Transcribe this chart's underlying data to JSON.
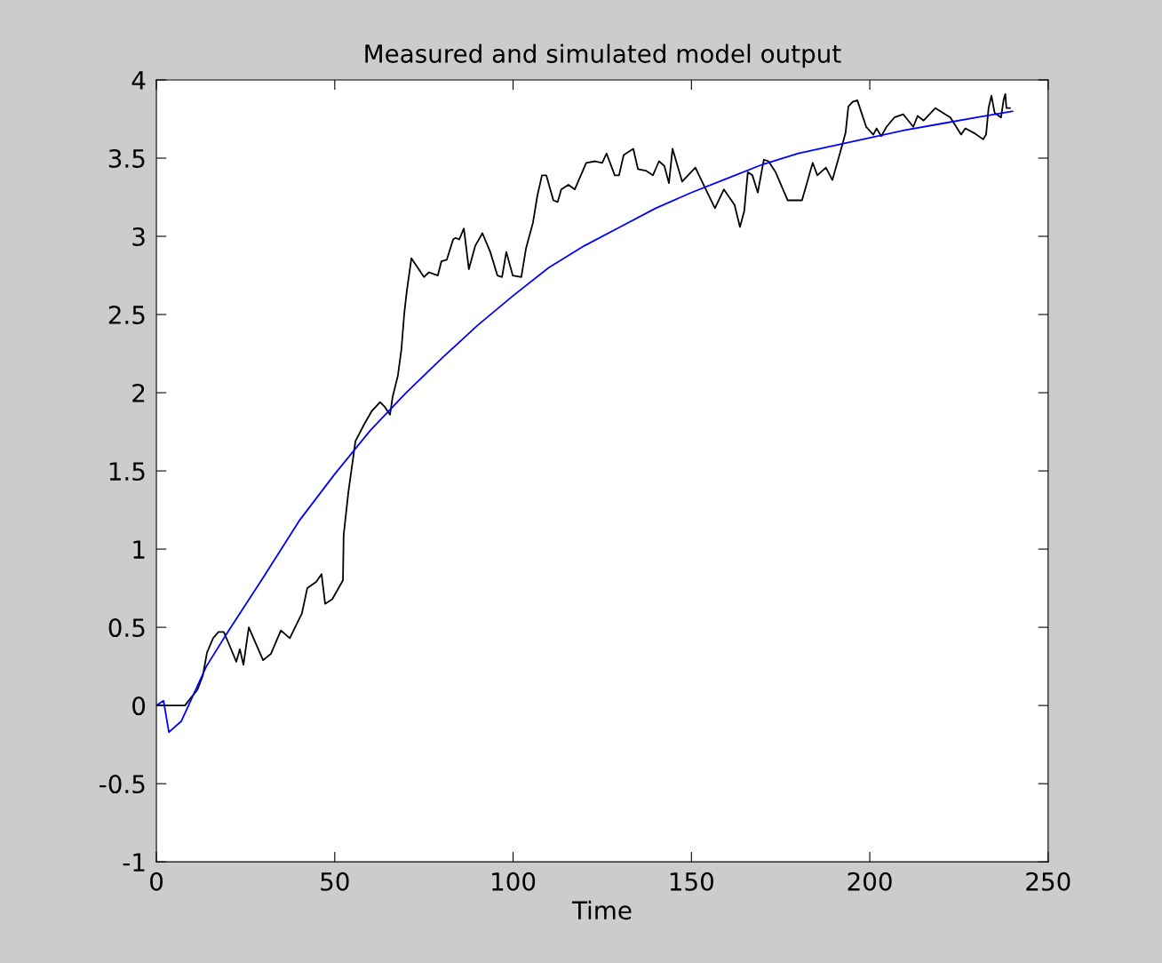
{
  "chart_data": {
    "type": "line",
    "title": "Measured and simulated model output",
    "xlabel": "Time",
    "xlim": [
      0,
      250
    ],
    "xticks": [
      0,
      50,
      100,
      150,
      200,
      250
    ],
    "ylim": [
      -1,
      4
    ],
    "yticks": [
      -1,
      -0.5,
      0,
      0.5,
      1,
      1.5,
      2,
      2.5,
      3,
      3.5,
      4
    ],
    "grid": false,
    "line_style": "solid",
    "marker": "none",
    "series": [
      {
        "color": "#000000",
        "x": [
          0,
          8,
          9.7,
          11.5,
          13,
          14.2,
          15.9,
          17.4,
          18.9,
          20.4,
          22.4,
          23.4,
          24.4,
          25.9,
          29.9,
          32.1,
          34.9,
          37.4,
          40.8,
          42.3,
          44.8,
          46.3,
          47.3,
          49.3,
          52.3,
          52.5,
          53.8,
          55.8,
          58.3,
          60.3,
          62.7,
          64,
          65.5,
          66.2,
          67.7,
          68.7,
          69.5,
          70.2,
          71.5,
          75,
          76.4,
          78.9,
          79.9,
          81.4,
          83.2,
          83.9,
          84.9,
          86.2,
          87.6,
          89.4,
          91.4,
          93.6,
          95.6,
          96.9,
          98.1,
          99.9,
          102.3,
          103.6,
          105.6,
          106.8,
          108.1,
          109.3,
          111.3,
          112.5,
          113.5,
          115.5,
          117.3,
          120.5,
          123,
          125,
          126.2,
          128.5,
          129.7,
          131,
          133.7,
          135,
          137.2,
          139.2,
          140.9,
          142.4,
          143.7,
          144.7,
          147.4,
          151.1,
          153.6,
          156.6,
          159.1,
          162.1,
          163.6,
          164.8,
          165.8,
          167.1,
          168.6,
          170.3,
          171.6,
          173.6,
          177,
          181,
          184,
          185.3,
          187.7,
          189.5,
          191.5,
          193.2,
          194,
          195.2,
          196.5,
          199,
          201,
          201.9,
          203.2,
          204.7,
          206.9,
          209.4,
          212.2,
          213.4,
          215.1,
          218.4,
          222.6,
          225.6,
          226.8,
          229.3,
          231.8,
          232.6,
          233.3,
          234.1,
          235,
          236.8,
          237.5,
          238,
          238.3,
          239.3
        ],
        "values": [
          0,
          0,
          0.05,
          0.1,
          0.19,
          0.34,
          0.43,
          0.47,
          0.47,
          0.39,
          0.28,
          0.36,
          0.26,
          0.5,
          0.29,
          0.33,
          0.48,
          0.43,
          0.59,
          0.75,
          0.79,
          0.84,
          0.65,
          0.68,
          0.8,
          1.09,
          1.36,
          1.69,
          1.8,
          1.88,
          1.94,
          1.91,
          1.86,
          1.97,
          2.11,
          2.28,
          2.51,
          2.65,
          2.86,
          2.74,
          2.77,
          2.75,
          2.84,
          2.85,
          2.98,
          2.99,
          2.98,
          3.05,
          2.79,
          2.94,
          3.02,
          2.9,
          2.75,
          2.74,
          2.9,
          2.75,
          2.74,
          2.92,
          3.09,
          3.26,
          3.39,
          3.39,
          3.23,
          3.22,
          3.3,
          3.33,
          3.3,
          3.47,
          3.48,
          3.47,
          3.53,
          3.39,
          3.39,
          3.52,
          3.56,
          3.43,
          3.42,
          3.39,
          3.48,
          3.45,
          3.34,
          3.56,
          3.35,
          3.44,
          3.32,
          3.18,
          3.3,
          3.2,
          3.06,
          3.16,
          3.41,
          3.39,
          3.28,
          3.49,
          3.48,
          3.41,
          3.23,
          3.23,
          3.47,
          3.39,
          3.44,
          3.36,
          3.52,
          3.66,
          3.83,
          3.86,
          3.87,
          3.7,
          3.65,
          3.69,
          3.64,
          3.7,
          3.76,
          3.78,
          3.7,
          3.77,
          3.74,
          3.82,
          3.76,
          3.65,
          3.69,
          3.66,
          3.62,
          3.65,
          3.82,
          3.9,
          3.79,
          3.76,
          3.87,
          3.91,
          3.82,
          3.82
        ]
      },
      {
        "color": "#0000ff",
        "x": [
          0,
          2,
          3.5,
          7,
          9,
          14,
          20,
          30,
          40,
          50,
          60,
          70,
          80,
          90,
          100,
          110,
          120,
          130,
          140,
          150,
          160,
          170,
          180,
          190,
          200,
          210,
          220,
          230,
          240
        ],
        "values": [
          0,
          0.03,
          -0.17,
          -0.1,
          0,
          0.25,
          0.47,
          0.82,
          1.18,
          1.48,
          1.76,
          2.0,
          2.22,
          2.43,
          2.62,
          2.8,
          2.94,
          3.06,
          3.18,
          3.28,
          3.37,
          3.46,
          3.53,
          3.58,
          3.63,
          3.68,
          3.72,
          3.76,
          3.8
        ]
      }
    ]
  }
}
